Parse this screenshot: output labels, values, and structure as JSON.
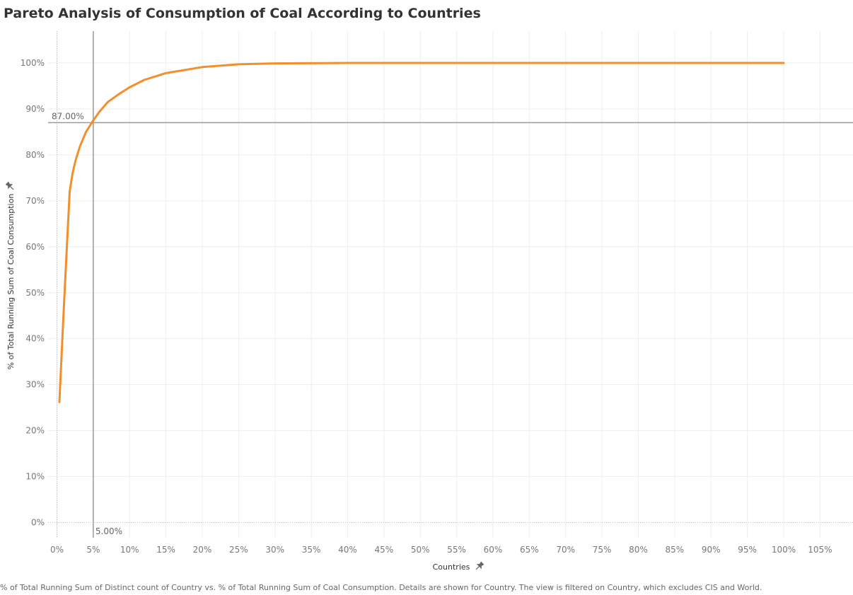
{
  "chart_data": {
    "type": "line",
    "title": "Pareto Analysis of Consumption of Coal According to Countries",
    "xlabel": "Countries",
    "ylabel": "% of Total Running Sum of Coal Consumption",
    "xlim": [
      -0.01,
      1.09
    ],
    "ylim": [
      -0.04,
      1.07
    ],
    "x_ticks": [
      "0%",
      "5%",
      "10%",
      "15%",
      "20%",
      "25%",
      "30%",
      "35%",
      "40%",
      "45%",
      "50%",
      "55%",
      "60%",
      "65%",
      "70%",
      "75%",
      "80%",
      "85%",
      "90%",
      "95%",
      "100%",
      "105%"
    ],
    "y_ticks": [
      "0%",
      "10%",
      "20%",
      "30%",
      "40%",
      "50%",
      "60%",
      "70%",
      "80%",
      "90%",
      "100%"
    ],
    "x_tick_values": [
      0,
      0.05,
      0.1,
      0.15,
      0.2,
      0.25,
      0.3,
      0.35,
      0.4,
      0.45,
      0.5,
      0.55,
      0.6,
      0.65,
      0.7,
      0.75,
      0.8,
      0.85,
      0.9,
      0.95,
      1.0,
      1.05
    ],
    "y_tick_values": [
      0,
      0.1,
      0.2,
      0.3,
      0.4,
      0.5,
      0.6,
      0.7,
      0.8,
      0.9,
      1.0
    ],
    "grid": true,
    "series": [
      {
        "color": "#F28E2B",
        "x": [
          0.0034,
          0.0087,
          0.013,
          0.0175,
          0.0215,
          0.026,
          0.032,
          0.04,
          0.05,
          0.058,
          0.07,
          0.085,
          0.1,
          0.12,
          0.15,
          0.2,
          0.25,
          0.3,
          0.4,
          0.5,
          0.6,
          0.7,
          0.8,
          0.9,
          1.0
        ],
        "y": [
          0.262,
          0.44,
          0.58,
          0.72,
          0.76,
          0.79,
          0.82,
          0.85,
          0.875,
          0.893,
          0.915,
          0.932,
          0.947,
          0.963,
          0.978,
          0.991,
          0.997,
          0.999,
          1.0,
          1.0,
          1.0,
          1.0,
          1.0,
          1.0,
          1.0
        ]
      }
    ],
    "reference_lines": [
      {
        "axis": "y",
        "value": 0.87,
        "label": "87.00%",
        "color": "#999999"
      },
      {
        "axis": "x",
        "value": 0.05,
        "label": "5.00%",
        "color": "#999999"
      }
    ],
    "pin_icon": "pin-icon"
  },
  "caption": "% of Total Running Sum of Distinct count of Country vs. % of Total Running Sum of Coal Consumption.  Details are shown for Country. The view is filtered on Country, which excludes CIS and World."
}
